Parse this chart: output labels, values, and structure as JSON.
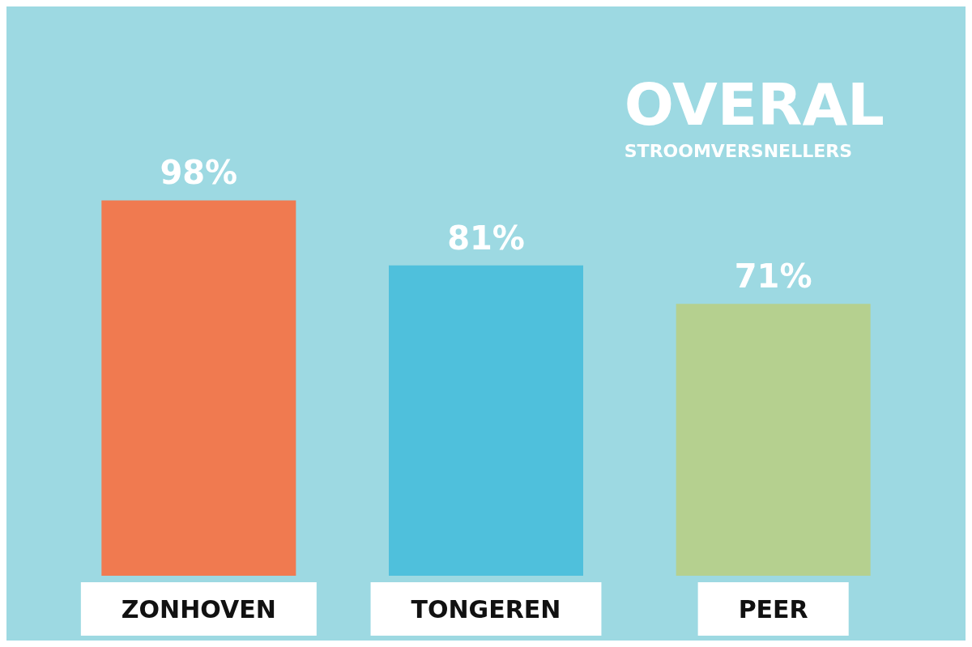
{
  "chart_data": {
    "type": "bar",
    "title": "OVERAL",
    "subtitle": "STROOMVERSNELLERS",
    "categories": [
      "ZONHOVEN",
      "TONGEREN",
      "PEER"
    ],
    "values": [
      98,
      81,
      71
    ],
    "colors": [
      "#f07a50",
      "#4fc0dc",
      "#b5d08f"
    ],
    "value_labels": [
      "98%",
      "81%",
      "71%"
    ],
    "grid": false
  }
}
